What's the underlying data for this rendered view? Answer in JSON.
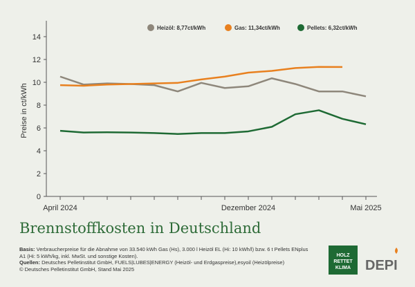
{
  "chart_data": {
    "type": "line",
    "title": "Brennstoffkosten in Deutschland",
    "y_label": "Preise in ct/kWh",
    "categories": [
      "April 2024",
      null,
      null,
      null,
      null,
      null,
      null,
      null,
      "Dezember 2024",
      null,
      null,
      null,
      null,
      "Mai 2025"
    ],
    "series": [
      {
        "name": "Heizöl: 8,77ct/kWh",
        "color": "#8e877b",
        "values": [
          10.5,
          9.8,
          9.9,
          9.85,
          9.75,
          9.2,
          9.95,
          9.5,
          9.65,
          10.35,
          9.85,
          9.2,
          9.2,
          8.77
        ]
      },
      {
        "name": "Gas: 11,34ct/kWh",
        "color": "#e8801f",
        "values": [
          9.75,
          9.7,
          9.8,
          9.85,
          9.9,
          9.95,
          10.25,
          10.5,
          10.85,
          11.0,
          11.25,
          11.35,
          11.34,
          null
        ]
      },
      {
        "name": "Pellets: 6,32ct/kWh",
        "color": "#1e6a34",
        "values": [
          5.75,
          5.6,
          5.62,
          5.6,
          5.55,
          5.47,
          5.55,
          5.55,
          5.7,
          6.1,
          7.2,
          7.55,
          6.8,
          6.32
        ]
      }
    ],
    "ylim": [
      0,
      14
    ],
    "yticks": [
      0,
      2,
      4,
      6,
      8,
      10,
      12,
      14
    ],
    "notes": [
      {
        "label": "Basis:",
        "text": "Verbraucherpreise für die Abnahme von 33.540 kWh Gas (Hs), 3.000 l Heizöl EL (Hi: 10 kWh/l) bzw. 6 t Pellets ENplus A1 (Hi: 5 kWh/kg, inkl. MwSt. und sonstige Kosten)."
      },
      {
        "label": "Quellen:",
        "text": "Deutsches Pelletinstitut GmbH, FUELS|LUBES|ENERGY (Heizöl- und Erdgaspreise),esyoil (Heizölpreise)"
      },
      {
        "label": "",
        "text": "© Deutsches Pelletinstitut GmbH, Stand Mai 2025"
      }
    ],
    "logo_1": [
      "HOLZ",
      "RETTET",
      "KLIMA"
    ],
    "logo_2": "DEPI"
  }
}
